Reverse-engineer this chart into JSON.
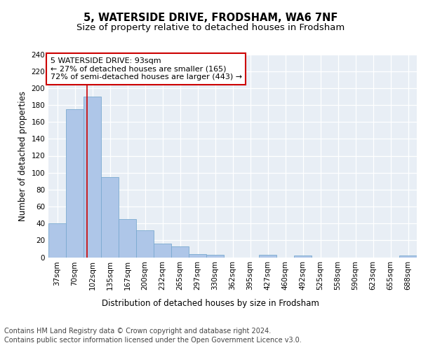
{
  "title": "5, WATERSIDE DRIVE, FRODSHAM, WA6 7NF",
  "subtitle": "Size of property relative to detached houses in Frodsham",
  "xlabel": "Distribution of detached houses by size in Frodsham",
  "ylabel": "Number of detached properties",
  "footer1": "Contains HM Land Registry data © Crown copyright and database right 2024.",
  "footer2": "Contains public sector information licensed under the Open Government Licence v3.0.",
  "bin_labels": [
    "37sqm",
    "70sqm",
    "102sqm",
    "135sqm",
    "167sqm",
    "200sqm",
    "232sqm",
    "265sqm",
    "297sqm",
    "330sqm",
    "362sqm",
    "395sqm",
    "427sqm",
    "460sqm",
    "492sqm",
    "525sqm",
    "558sqm",
    "590sqm",
    "623sqm",
    "655sqm",
    "688sqm"
  ],
  "bar_values": [
    40,
    175,
    190,
    95,
    45,
    32,
    16,
    13,
    4,
    3,
    0,
    0,
    3,
    0,
    2,
    0,
    0,
    0,
    0,
    0,
    2
  ],
  "bar_color": "#aec6e8",
  "bar_edge_color": "#7aaad0",
  "ylim": [
    0,
    240
  ],
  "yticks": [
    0,
    20,
    40,
    60,
    80,
    100,
    120,
    140,
    160,
    180,
    200,
    220,
    240
  ],
  "annotation_title": "5 WATERSIDE DRIVE: 93sqm",
  "annotation_line1": "← 27% of detached houses are smaller (165)",
  "annotation_line2": "72% of semi-detached houses are larger (443) →",
  "annotation_box_color": "#ffffff",
  "annotation_border_color": "#cc0000",
  "title_fontsize": 10.5,
  "subtitle_fontsize": 9.5,
  "axis_label_fontsize": 8.5,
  "tick_fontsize": 7.5,
  "annotation_fontsize": 8,
  "footer_fontsize": 7
}
